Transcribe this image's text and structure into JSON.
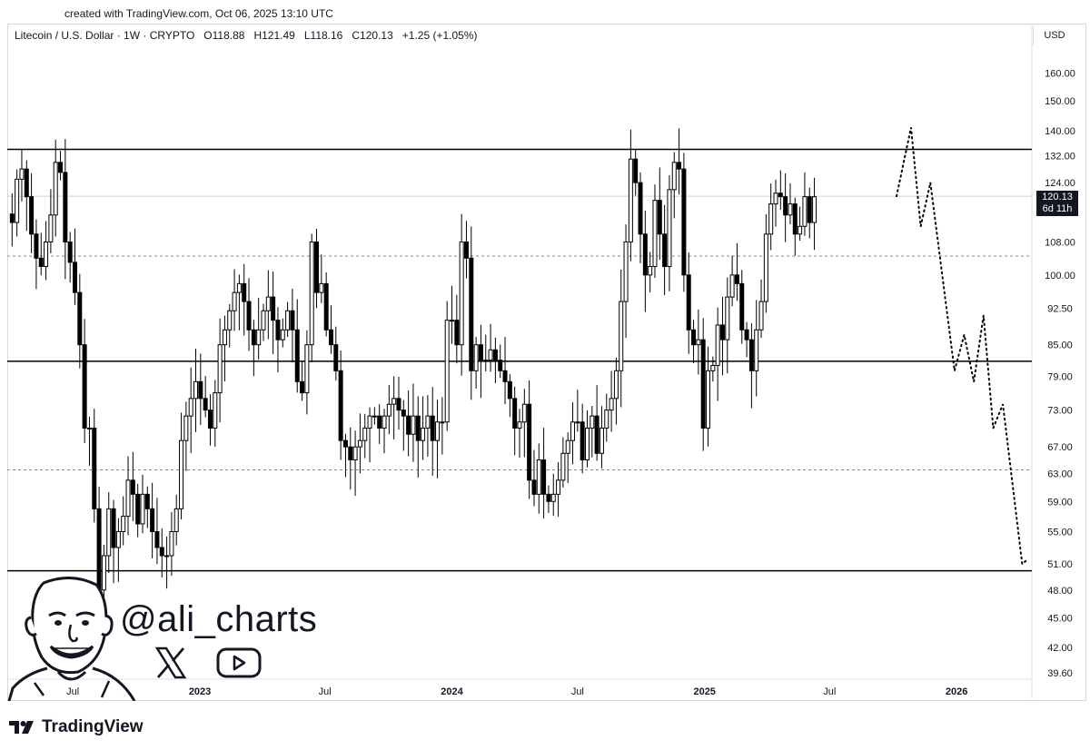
{
  "created_line": "created with TradingView.com, Oct 06, 2025 13:10 UTC",
  "header": {
    "symbol": "Litecoin / U.S. Dollar · 1W · CRYPTO",
    "open": "O118.88",
    "high": "H121.49",
    "low": "L118.16",
    "close": "C120.13",
    "change": "+1.25 (+1.05%)"
  },
  "currency": "USD",
  "price_tag": {
    "price": "120.13",
    "countdown": "6d 11h"
  },
  "watermark": {
    "handle": "@ali_charts",
    "brand": "TradingView"
  },
  "icons": [
    "x-logo-icon",
    "youtube-icon",
    "tradingview-logo-icon",
    "avatar-illustration"
  ],
  "colors": {
    "candle_up": "#ffffff",
    "candle_down": "#000000",
    "outline": "#000000",
    "grid": "#e0e0e0",
    "price_line": "#d0d0d0"
  },
  "chart_data": {
    "type": "candlestick",
    "interval": "1W",
    "scale": "log",
    "ylim": [
      39,
      170
    ],
    "y_ticks": [
      {
        "value": 160,
        "label": "160.00"
      },
      {
        "value": 150,
        "label": "150.00"
      },
      {
        "value": 140,
        "label": "140.00"
      },
      {
        "value": 132,
        "label": "132.00"
      },
      {
        "value": 124,
        "label": "124.00"
      },
      {
        "value": 108,
        "label": "108.00"
      },
      {
        "value": 100,
        "label": "100.00"
      },
      {
        "value": 92.5,
        "label": "92.50"
      },
      {
        "value": 85,
        "label": "85.00"
      },
      {
        "value": 79,
        "label": "79.00"
      },
      {
        "value": 73,
        "label": "73.00"
      },
      {
        "value": 67,
        "label": "67.00"
      },
      {
        "value": 63,
        "label": "63.00"
      },
      {
        "value": 59,
        "label": "59.00"
      },
      {
        "value": 55,
        "label": "55.00"
      },
      {
        "value": 51,
        "label": "51.00"
      },
      {
        "value": 48,
        "label": "48.00"
      },
      {
        "value": 45,
        "label": "45.00"
      },
      {
        "value": 42,
        "label": "42.00"
      },
      {
        "value": 39.6,
        "label": "39.60"
      }
    ],
    "x_ticks": [
      {
        "date": "2022-07-01",
        "label": "Jul"
      },
      {
        "date": "2023-01-01",
        "label": "2023",
        "bold": true
      },
      {
        "date": "2023-07-01",
        "label": "Jul"
      },
      {
        "date": "2024-01-01",
        "label": "2024",
        "bold": true
      },
      {
        "date": "2024-07-01",
        "label": "Jul"
      },
      {
        "date": "2025-01-01",
        "label": "2025",
        "bold": true
      },
      {
        "date": "2025-07-01",
        "label": "Jul"
      },
      {
        "date": "2026-01-01",
        "label": "2026",
        "bold": true
      }
    ],
    "x_start": "2022-03-28",
    "x_end": "2026-04-20",
    "support_resistance": [
      134,
      81.8,
      50.2
    ],
    "dashed_levels": [
      104.5,
      63.5
    ],
    "last_price": 120.13,
    "closes": [
      113,
      125,
      128,
      120,
      110,
      104,
      102,
      108,
      115,
      130,
      127,
      108,
      103,
      96,
      85,
      70,
      70,
      58,
      48,
      52,
      58,
      53,
      55,
      57,
      62,
      60,
      56,
      60,
      58,
      55,
      53,
      52,
      52,
      55,
      58,
      68,
      72,
      75,
      78,
      75,
      73,
      70,
      76,
      85,
      88,
      92,
      96,
      98,
      94,
      88,
      85,
      88,
      92,
      95,
      90,
      86,
      88,
      92,
      88,
      78,
      76,
      85,
      108,
      96,
      98,
      88,
      85,
      80,
      68,
      67,
      65,
      67,
      68,
      70,
      72,
      72,
      70,
      72,
      74,
      75,
      73,
      72,
      69,
      72,
      68,
      70,
      72,
      68,
      71,
      71,
      90,
      90,
      85,
      108,
      104,
      80,
      85,
      82,
      82,
      84,
      82,
      80,
      78,
      75,
      70,
      71,
      74,
      62,
      60,
      65,
      60,
      59,
      60,
      62,
      66,
      68,
      71,
      71,
      65,
      70,
      72,
      66,
      70,
      73,
      75,
      80,
      94,
      108,
      131,
      124,
      110,
      100,
      102,
      119,
      110,
      102,
      122,
      130,
      128,
      100,
      88,
      85,
      86,
      70,
      80,
      81,
      89,
      86,
      95,
      100,
      98,
      88,
      86,
      80,
      88,
      94,
      110,
      118,
      121,
      120,
      115,
      118,
      110,
      112,
      120,
      113,
      120
    ],
    "forecast_path": [
      {
        "date": "2025-10-06",
        "value": 120.13
      },
      {
        "date": "2025-10-27",
        "value": 141
      },
      {
        "date": "2025-11-10",
        "value": 112
      },
      {
        "date": "2025-11-24",
        "value": 124
      },
      {
        "date": "2025-12-29",
        "value": 80
      },
      {
        "date": "2026-01-12",
        "value": 87
      },
      {
        "date": "2026-01-26",
        "value": 78
      },
      {
        "date": "2026-02-09",
        "value": 91
      },
      {
        "date": "2026-02-23",
        "value": 70
      },
      {
        "date": "2026-03-09",
        "value": 74
      },
      {
        "date": "2026-04-06",
        "value": 51
      },
      {
        "date": "2026-04-13",
        "value": 51.5
      }
    ]
  }
}
